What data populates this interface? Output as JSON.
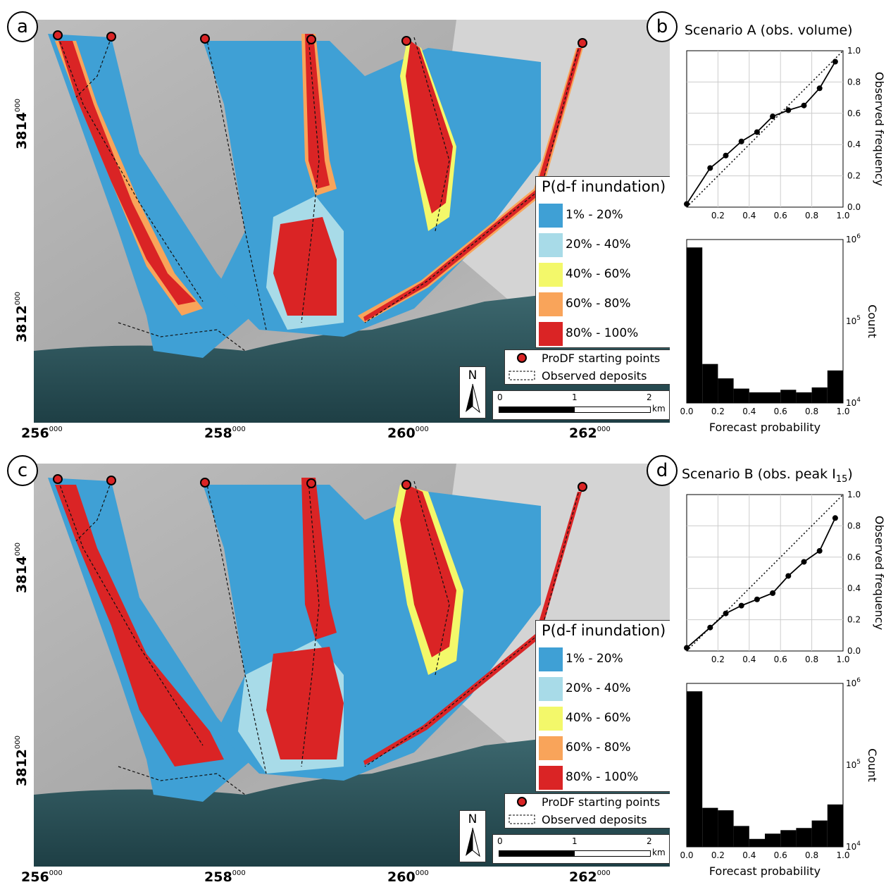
{
  "legend": {
    "title": "P(d-f inundation)",
    "classes": [
      {
        "label": "1% - 20%",
        "color": "#3fa0d5"
      },
      {
        "label": "20% - 40%",
        "color": "#a8dbe8"
      },
      {
        "label": "40% - 60%",
        "color": "#f3f86a"
      },
      {
        "label": "60% - 80%",
        "color": "#f9a45a"
      },
      {
        "label": "80% - 100%",
        "color": "#da2425"
      }
    ],
    "starting_points_label": "ProDF starting points",
    "deposits_label": "Observed deposits"
  },
  "north_label": "N",
  "scale_bar": {
    "ticks": [
      "0",
      "1",
      "2"
    ],
    "unit": "km"
  },
  "map_axes": {
    "x_ticks": [
      {
        "main": "256",
        "sup": "000"
      },
      {
        "main": "258",
        "sup": "000"
      },
      {
        "main": "260",
        "sup": "000"
      },
      {
        "main": "262",
        "sup": "000"
      }
    ],
    "y_ticks": [
      {
        "main": "3814",
        "sup": "000"
      },
      {
        "main": "3812",
        "sup": "000"
      }
    ]
  },
  "panels": {
    "a": "a",
    "b": "b",
    "c": "c",
    "d": "d"
  },
  "chart_data": [
    {
      "type": "line",
      "panel": "b",
      "title": "Scenario A (obs. volume)",
      "ylabel": "Observed frequency",
      "x": [
        0.0,
        0.15,
        0.25,
        0.35,
        0.45,
        0.55,
        0.65,
        0.75,
        0.85,
        0.95
      ],
      "y": [
        0.02,
        0.25,
        0.33,
        0.42,
        0.48,
        0.58,
        0.62,
        0.65,
        0.76,
        0.93
      ],
      "xlim": [
        0,
        1
      ],
      "ylim": [
        0,
        1
      ],
      "xticks": [
        "0.2",
        "0.4",
        "0.6",
        "0.8",
        "1.0"
      ],
      "yticks": [
        "0.0",
        "0.2",
        "0.4",
        "0.6",
        "0.8",
        "1.0"
      ]
    },
    {
      "type": "bar",
      "panel": "b",
      "xlabel": "Forecast probability",
      "ylabel": "Count",
      "yscale": "log",
      "bin_edges": [
        0.0,
        0.1,
        0.2,
        0.3,
        0.4,
        0.5,
        0.6,
        0.7,
        0.8,
        0.9,
        1.0
      ],
      "values": [
        800000,
        30000,
        20000,
        15000,
        13500,
        13500,
        14500,
        13500,
        15500,
        25000
      ],
      "xticks": [
        "0.0",
        "0.2",
        "0.4",
        "0.6",
        "0.8",
        "1.0"
      ],
      "yticks": [
        {
          "base": "10",
          "exp": "4"
        },
        {
          "base": "10",
          "exp": "5"
        },
        {
          "base": "10",
          "exp": "6"
        }
      ]
    },
    {
      "type": "line",
      "panel": "d",
      "title": "Scenario B (obs. peak I",
      "title_sub": "15",
      "title_end": ")",
      "ylabel": "Observed frequency",
      "x": [
        0.0,
        0.15,
        0.25,
        0.35,
        0.45,
        0.55,
        0.65,
        0.75,
        0.85,
        0.95
      ],
      "y": [
        0.02,
        0.15,
        0.24,
        0.29,
        0.33,
        0.37,
        0.48,
        0.57,
        0.64,
        0.85
      ],
      "xlim": [
        0,
        1
      ],
      "ylim": [
        0,
        1
      ],
      "xticks": [
        "0.2",
        "0.4",
        "0.6",
        "0.8",
        "1.0"
      ],
      "yticks": [
        "0.0",
        "0.2",
        "0.4",
        "0.6",
        "0.8",
        "1.0"
      ]
    },
    {
      "type": "bar",
      "panel": "d",
      "xlabel": "Forecast probability",
      "ylabel": "Count",
      "yscale": "log",
      "bin_edges": [
        0.0,
        0.1,
        0.2,
        0.3,
        0.4,
        0.5,
        0.6,
        0.7,
        0.8,
        0.9,
        1.0
      ],
      "values": [
        800000,
        30000,
        28000,
        18000,
        12500,
        14500,
        16000,
        17000,
        21000,
        33000
      ],
      "xticks": [
        "0.0",
        "0.2",
        "0.4",
        "0.6",
        "0.8",
        "1.0"
      ],
      "yticks": [
        {
          "base": "10",
          "exp": "4"
        },
        {
          "base": "10",
          "exp": "5"
        },
        {
          "base": "10",
          "exp": "6"
        }
      ]
    }
  ]
}
